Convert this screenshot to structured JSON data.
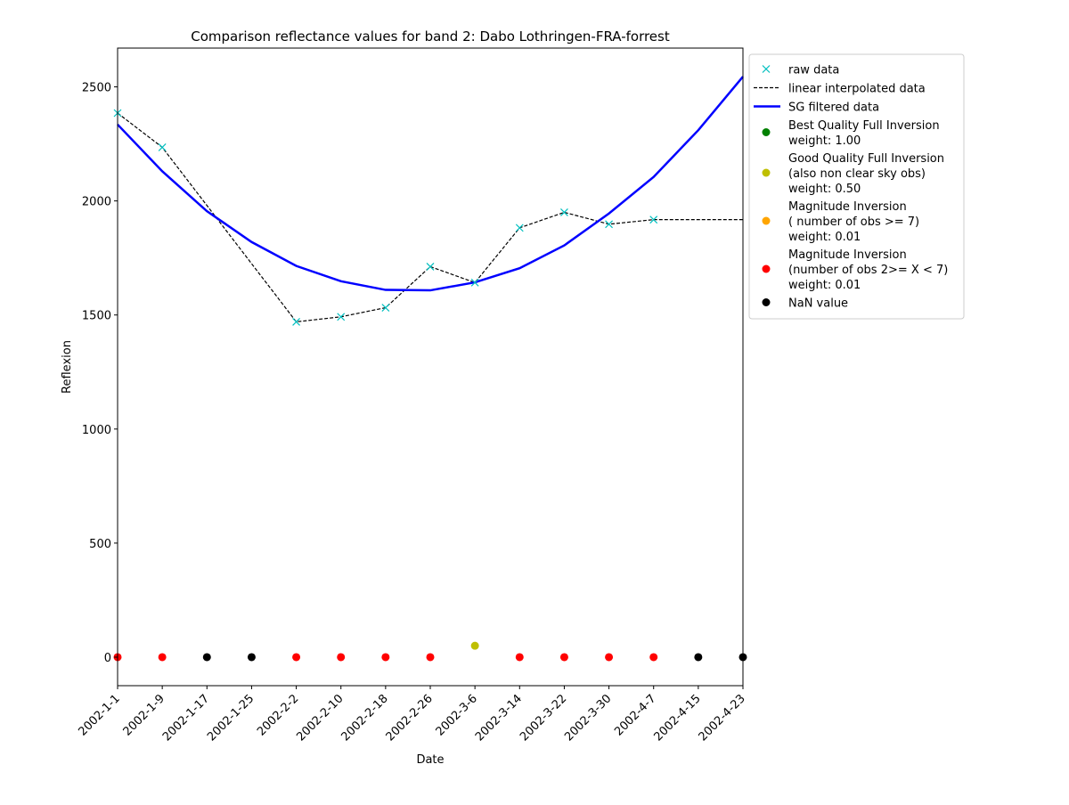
{
  "chart_data": {
    "type": "line",
    "title": "Comparison reflectance values for band 2: Dabo Lothringen-FRA-forrest",
    "xlabel": "Date",
    "ylabel": "Reflexion",
    "x_ticks": [
      "2002-1-1",
      "2002-1-9",
      "2002-1-17",
      "2002-1-25",
      "2002-2-2",
      "2002-2-10",
      "2002-2-18",
      "2002-2-26",
      "2002-3-6",
      "2002-3-14",
      "2002-3-22",
      "2002-3-30",
      "2002-4-7",
      "2002-4-15",
      "2002-4-23"
    ],
    "y_ticks": [
      0,
      500,
      1000,
      1500,
      2000,
      2500
    ],
    "ylim": [
      -125,
      2670
    ],
    "grid": false,
    "legend_position": "outside-right",
    "series": [
      {
        "name": "raw data",
        "kind": "marker-x",
        "color": "#00bfbf",
        "values": [
          2385,
          2235,
          null,
          null,
          1470,
          1492,
          1532,
          1712,
          1642,
          1882,
          1950,
          1898,
          1918,
          null,
          null
        ]
      },
      {
        "name": "linear interpolated data",
        "kind": "dashed-line",
        "color": "#000000",
        "values": [
          2385,
          2235,
          1980,
          1725,
          1470,
          1492,
          1532,
          1712,
          1642,
          1882,
          1950,
          1898,
          1918,
          1918,
          1918
        ]
      },
      {
        "name": "SG filtered data",
        "kind": "line",
        "color": "#0000ff",
        "values": [
          2335,
          2130,
          1955,
          1820,
          1715,
          1648,
          1610,
          1608,
          1643,
          1705,
          1805,
          1945,
          2105,
          2310,
          2545
        ]
      }
    ],
    "quality_points": {
      "values": [
        0,
        0,
        0,
        0,
        0,
        0,
        0,
        0,
        50,
        0,
        0,
        0,
        0,
        0,
        0
      ],
      "classes": [
        "magnitude_lt7",
        "magnitude_lt7",
        "nan",
        "nan",
        "magnitude_lt7",
        "magnitude_lt7",
        "magnitude_lt7",
        "magnitude_lt7",
        "good",
        "magnitude_lt7",
        "magnitude_lt7",
        "magnitude_lt7",
        "magnitude_lt7",
        "nan",
        "nan"
      ]
    },
    "legend": [
      {
        "key": "raw",
        "symbol": "x",
        "color": "#00bfbf",
        "lines": [
          "raw data"
        ]
      },
      {
        "key": "interp",
        "symbol": "dashed",
        "color": "#000000",
        "lines": [
          "linear interpolated data"
        ]
      },
      {
        "key": "sg",
        "symbol": "line",
        "color": "#0000ff",
        "lines": [
          "SG filtered data"
        ]
      },
      {
        "key": "best",
        "symbol": "dot",
        "color": "#008000",
        "lines": [
          "Best Quality Full Inversion",
          "weight: 1.00"
        ]
      },
      {
        "key": "good",
        "symbol": "dot",
        "color": "#bfbf00",
        "lines": [
          "Good Quality Full Inversion",
          "(also non clear sky obs)",
          "weight: 0.50"
        ]
      },
      {
        "key": "magnitude_ge7",
        "symbol": "dot",
        "color": "#ffa500",
        "lines": [
          "Magnitude Inversion",
          "( number of obs >= 7)",
          "weight: 0.01"
        ]
      },
      {
        "key": "magnitude_lt7",
        "symbol": "dot",
        "color": "#ff0000",
        "lines": [
          "Magnitude Inversion",
          "(number of obs 2>= X < 7)",
          "weight: 0.01"
        ]
      },
      {
        "key": "nan",
        "symbol": "dot",
        "color": "#000000",
        "lines": [
          "NaN value"
        ]
      }
    ]
  }
}
